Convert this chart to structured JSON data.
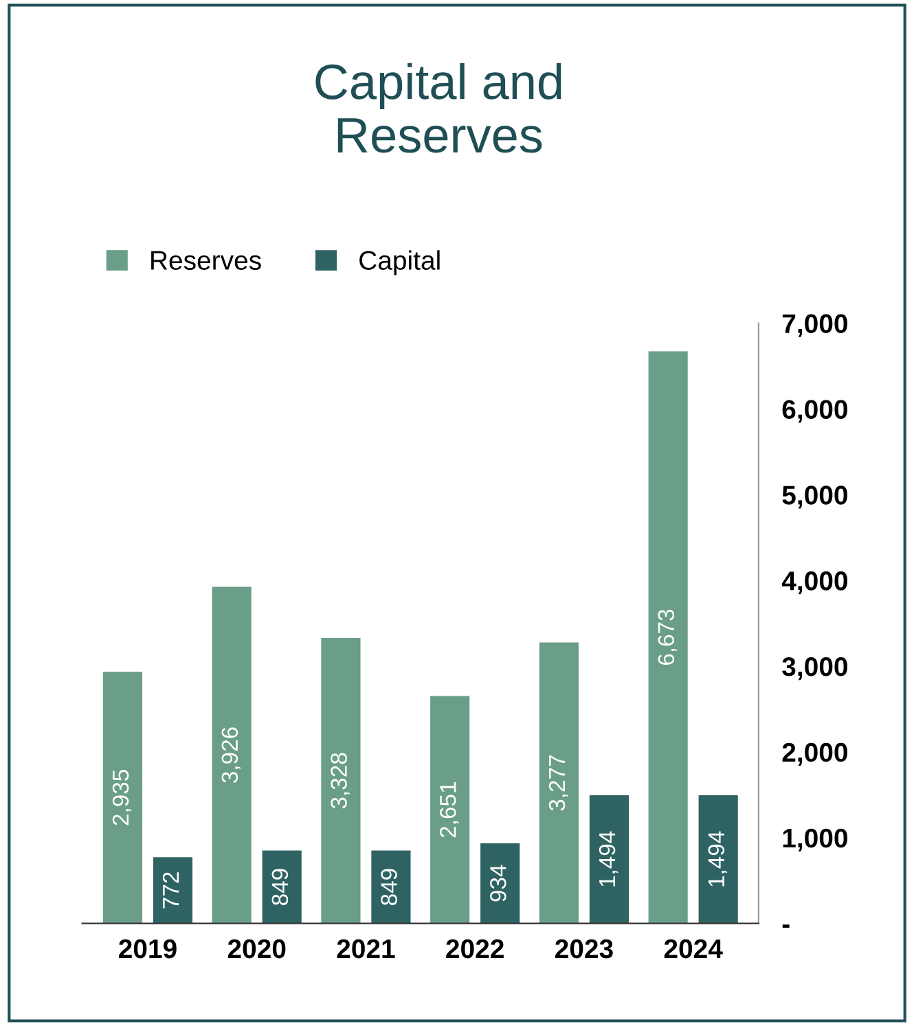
{
  "chart_data": {
    "type": "bar",
    "title": "Capital and\nReserves",
    "categories": [
      "2019",
      "2020",
      "2021",
      "2022",
      "2023",
      "2024"
    ],
    "series": [
      {
        "name": "Reserves",
        "color": "#6a9e88",
        "values": [
          2935,
          3926,
          3328,
          2651,
          3277,
          6673
        ],
        "value_labels": [
          "2,935",
          "3,926",
          "3,328",
          "2,651",
          "3,277",
          "6,673"
        ]
      },
      {
        "name": "Capital",
        "color": "#2f6363",
        "values": [
          772,
          849,
          849,
          934,
          1494,
          1494
        ],
        "value_labels": [
          "772",
          "849",
          "849",
          "934",
          "1,494",
          "1,494"
        ]
      }
    ],
    "ylim": [
      0,
      7000
    ],
    "yticks": [
      {
        "value": 0,
        "label": "-"
      },
      {
        "value": 1000,
        "label": "1,000"
      },
      {
        "value": 2000,
        "label": "2,000"
      },
      {
        "value": 3000,
        "label": "3,000"
      },
      {
        "value": 4000,
        "label": "4,000"
      },
      {
        "value": 5000,
        "label": "5,000"
      },
      {
        "value": 6000,
        "label": "6,000"
      },
      {
        "value": 7000,
        "label": "7,000"
      }
    ],
    "legend": "top left",
    "grid": false
  }
}
